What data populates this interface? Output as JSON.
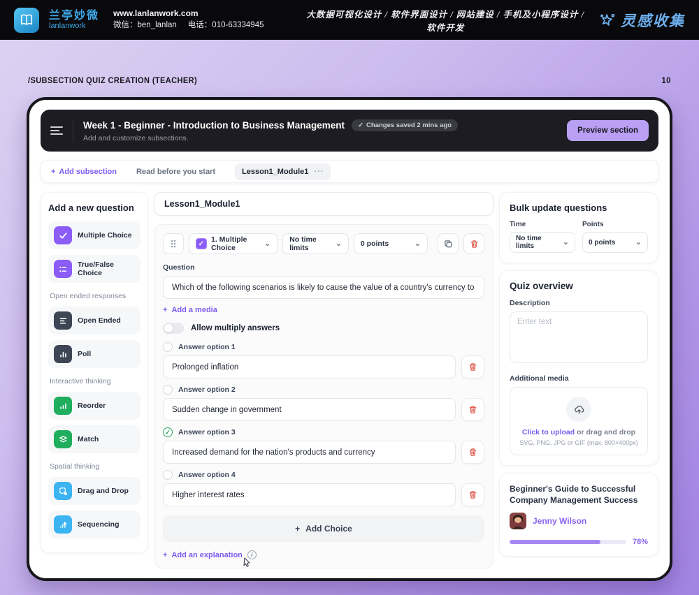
{
  "icons": {
    "plus": "+",
    "check": "✓",
    "chevron_down": "⌄",
    "ellipsis": "···",
    "info": "i"
  },
  "topbar": {
    "brand_cn": "兰亭妙微",
    "brand_en": "lanlanwork",
    "website": "www.lanlanwork.com",
    "wechat": "微信：ben_lanlan",
    "phone": "电话：010-63334945",
    "services": "大数据可视化设计 / 软件界面设计 / 网站建设 / 手机及小程序设计 / 软件开发",
    "collect_logo": "灵感收集"
  },
  "page": {
    "breadcrumb": "/SUBSECTION QUIZ CREATION (TEACHER)",
    "page_number": "10"
  },
  "header": {
    "title": "Week 1 - Beginner - Introduction to Business Management",
    "saved_badge": "Changes saved 2 mins ago",
    "subtitle": "Add and customize subsections.",
    "preview_button": "Preview section"
  },
  "tabs": {
    "add_subsection": "Add subsection",
    "read_tab": "Read before you start",
    "active_tab": "Lesson1_Module1"
  },
  "palette": {
    "title": "Add a new question",
    "multiple_choice": "Multiple Choice",
    "true_false": "True/False Choice",
    "section_open": "Open ended responses",
    "open_ended": "Open Ended",
    "poll": "Poll",
    "section_interactive": "Interactive thinking",
    "reorder": "Reorder",
    "match": "Match",
    "section_spatial": "Spatial thinking",
    "drag_drop": "Drag and Drop",
    "sequencing": "Sequencing"
  },
  "editor": {
    "module_title": "Lesson1_Module1",
    "toolbar": {
      "type_select": "1. Multiple Choice",
      "time_select": "No time limits",
      "points_select": "0 points"
    },
    "question_label": "Question",
    "question_value": "Which of the following scenarios is likely to cause the value of a country's currency to rise?",
    "add_media": "Add a media",
    "allow_multi": "Allow multiply answers",
    "options": [
      {
        "label": "Answer option 1",
        "value": "Prolonged inflation",
        "correct": false
      },
      {
        "label": "Answer option 2",
        "value": "Sudden change in government",
        "correct": false
      },
      {
        "label": "Answer option 3",
        "value": "Increased demand for the nation's products and currency",
        "correct": true
      },
      {
        "label": "Answer option 4",
        "value": "Higher interest rates",
        "correct": false
      }
    ],
    "add_choice": "Add Choice",
    "add_explanation": "Add an explanation"
  },
  "bulk": {
    "title": "Bulk update questions",
    "time_label": "Time",
    "time_value": "No time limits",
    "points_label": "Points",
    "points_value": "0 points"
  },
  "overview": {
    "title": "Quiz overview",
    "description_label": "Description",
    "description_placeholder": "Enter text",
    "media_label": "Additional media",
    "upload_link": "Click to upload",
    "upload_rest": " or drag and drop",
    "upload_hint": "SVG, PNG, JPG or GIF (max. 800×400px)"
  },
  "course_card": {
    "title": "Beginner's Guide to Successful Company Management Success",
    "author": "Jenny Wilson",
    "progress": "78%"
  },
  "colors": {
    "accent_purple": "#7c5cf0",
    "green": "#1fae5e",
    "blue": "#3cb4f2",
    "danger": "#e0584d"
  }
}
